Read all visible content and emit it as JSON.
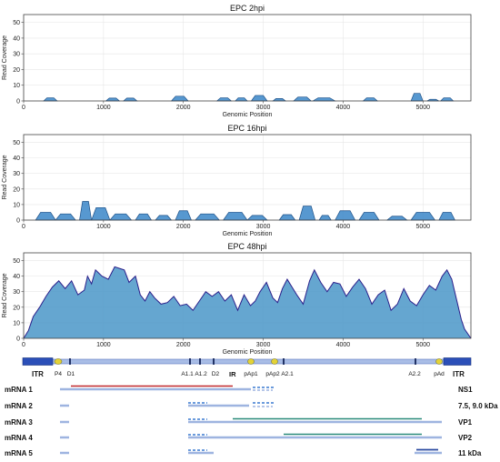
{
  "chart_data": [
    {
      "type": "area",
      "title": "EPC 2hpi",
      "xlabel": "Genomic Position",
      "ylabel": "Read Coverage",
      "xlim": [
        0,
        5600
      ],
      "ylim": [
        0,
        55
      ],
      "xticks": [
        0,
        1000,
        2000,
        3000,
        4000,
        5000
      ],
      "yticks": [
        0,
        10,
        20,
        30,
        40,
        50
      ],
      "grid": true,
      "color": "#3a86c8",
      "segments": [
        {
          "x": [
            250,
            420
          ],
          "y": 2
        },
        {
          "x": [
            1030,
            1200
          ],
          "y": 1.8
        },
        {
          "x": [
            1250,
            1420
          ],
          "y": 1.8
        },
        {
          "x": [
            1850,
            2060
          ],
          "y": 3
        },
        {
          "x": [
            2420,
            2600
          ],
          "y": 2
        },
        {
          "x": [
            2650,
            2800
          ],
          "y": 2
        },
        {
          "x": [
            2850,
            3050
          ],
          "y": 3.5
        },
        {
          "x": [
            3120,
            3280
          ],
          "y": 1.5
        },
        {
          "x": [
            3380,
            3600
          ],
          "y": 2.5
        },
        {
          "x": [
            3620,
            3900
          ],
          "y": 2
        },
        {
          "x": [
            4250,
            4430
          ],
          "y": 2
        },
        {
          "x": [
            4850,
            5000
          ],
          "y": 4.8
        },
        {
          "x": [
            5050,
            5200
          ],
          "y": 1
        },
        {
          "x": [
            5220,
            5380
          ],
          "y": 2
        }
      ]
    },
    {
      "type": "area",
      "title": "EPC 16hpi",
      "xlabel": "Genomic Position",
      "ylabel": "Read Coverage",
      "xlim": [
        0,
        5600
      ],
      "ylim": [
        0,
        55
      ],
      "xticks": [
        0,
        1000,
        2000,
        3000,
        4000,
        5000
      ],
      "yticks": [
        0,
        10,
        20,
        30,
        40,
        50
      ],
      "grid": true,
      "color": "#3a86c8",
      "segments": [
        {
          "x": [
            150,
            400
          ],
          "y": 5
        },
        {
          "x": [
            400,
            650
          ],
          "y": 4
        },
        {
          "x": [
            700,
            850
          ],
          "y": 12
        },
        {
          "x": [
            850,
            1080
          ],
          "y": 8
        },
        {
          "x": [
            1080,
            1350
          ],
          "y": 4
        },
        {
          "x": [
            1400,
            1600
          ],
          "y": 4
        },
        {
          "x": [
            1650,
            1850
          ],
          "y": 3
        },
        {
          "x": [
            1900,
            2100
          ],
          "y": 6
        },
        {
          "x": [
            2150,
            2450
          ],
          "y": 4
        },
        {
          "x": [
            2500,
            2800
          ],
          "y": 5
        },
        {
          "x": [
            2800,
            3050
          ],
          "y": 3
        },
        {
          "x": [
            3200,
            3400
          ],
          "y": 3.5
        },
        {
          "x": [
            3450,
            3650
          ],
          "y": 9
        },
        {
          "x": [
            3700,
            3850
          ],
          "y": 3
        },
        {
          "x": [
            3900,
            4150
          ],
          "y": 6
        },
        {
          "x": [
            4200,
            4450
          ],
          "y": 5
        },
        {
          "x": [
            4550,
            4800
          ],
          "y": 2.5
        },
        {
          "x": [
            4850,
            5150
          ],
          "y": 5
        },
        {
          "x": [
            5200,
            5400
          ],
          "y": 5
        }
      ]
    },
    {
      "type": "area",
      "title": "EPC 48hpi",
      "xlabel": "Genomic Position",
      "ylabel": "Read Coverage",
      "xlim": [
        0,
        5600
      ],
      "ylim": [
        0,
        55
      ],
      "xticks": [
        0,
        1000,
        2000,
        3000,
        4000,
        5000
      ],
      "yticks": [
        0,
        10,
        20,
        30,
        40,
        50
      ],
      "grid": true,
      "color": "#4a96c8",
      "line_color": "#2a1e8a",
      "x": [
        0,
        60,
        120,
        200,
        280,
        360,
        440,
        520,
        600,
        680,
        760,
        800,
        850,
        900,
        980,
        1060,
        1140,
        1200,
        1260,
        1320,
        1400,
        1460,
        1520,
        1580,
        1640,
        1720,
        1800,
        1880,
        1960,
        2040,
        2120,
        2200,
        2280,
        2360,
        2440,
        2520,
        2600,
        2680,
        2760,
        2840,
        2900,
        2960,
        3040,
        3120,
        3180,
        3240,
        3300,
        3360,
        3420,
        3500,
        3580,
        3640,
        3720,
        3800,
        3880,
        3960,
        4040,
        4120,
        4200,
        4280,
        4360,
        4440,
        4520,
        4600,
        4680,
        4760,
        4840,
        4920,
        5000,
        5080,
        5160,
        5240,
        5300,
        5360,
        5420,
        5480,
        5520,
        5560,
        5600
      ],
      "y": [
        0,
        5,
        14,
        20,
        27,
        33,
        37,
        32,
        37,
        28,
        31,
        40,
        35,
        44,
        40,
        38,
        46,
        45,
        44,
        36,
        40,
        28,
        24,
        30,
        26,
        22,
        23,
        27,
        21,
        22,
        18,
        24,
        30,
        27,
        30,
        24,
        28,
        18,
        28,
        21,
        24,
        30,
        36,
        26,
        23,
        32,
        38,
        33,
        28,
        22,
        37,
        44,
        36,
        30,
        36,
        35,
        27,
        33,
        38,
        32,
        22,
        28,
        31,
        18,
        22,
        32,
        24,
        21,
        28,
        34,
        31,
        40,
        44,
        38,
        25,
        12,
        6,
        3,
        0
      ]
    }
  ],
  "genome_map": {
    "itr_left": "ITR",
    "itr_right": "ITR",
    "p4": "P4",
    "labels": [
      "D1",
      "A1.1",
      "A1.2",
      "D2",
      "IR",
      "pAp1",
      "pAp2",
      "A2.1",
      "A2.2",
      "pAd"
    ],
    "colors": {
      "itr": "#2b4fb8",
      "backbone": "#9eb4e0",
      "promoter": "#e3d236",
      "site": "#223366"
    }
  },
  "mrnas": [
    {
      "name": "mRNA 1",
      "product": "NS1",
      "orf_color": "#c0282a"
    },
    {
      "name": "mRNA 2",
      "product": "7.5, 9.0 kDa",
      "orf_color": ""
    },
    {
      "name": "mRNA 3",
      "product": "VP1",
      "orf_color": "#2a8a7a"
    },
    {
      "name": "mRNA 4",
      "product": "VP2",
      "orf_color": "#2a8a7a"
    },
    {
      "name": "mRNA 5",
      "product": "11 kDa",
      "orf_color": "#2a4aa0"
    }
  ]
}
